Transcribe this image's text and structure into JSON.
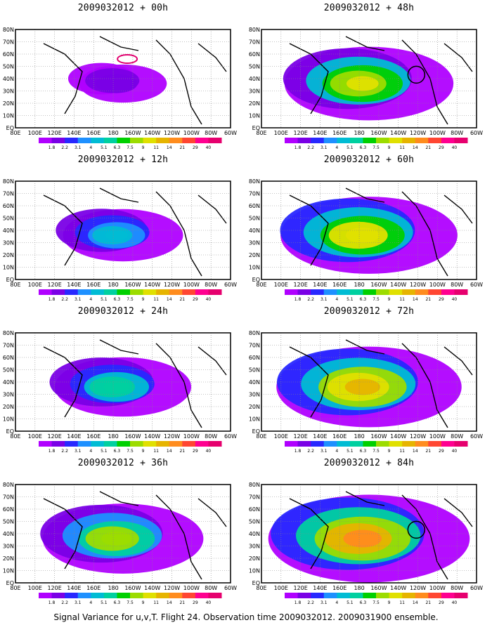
{
  "figure": {
    "caption": "Signal Variance for u,v,T. Flight 24. Observation time 2009032012. 2009031900 ensemble."
  },
  "map": {
    "lat_labels": [
      "80N",
      "70N",
      "60N",
      "50N",
      "40N",
      "30N",
      "20N",
      "10N",
      "EQ"
    ],
    "lon_labels": [
      "80E",
      "100E",
      "120E",
      "140E",
      "160E",
      "180",
      "160W",
      "140W",
      "120W",
      "100W",
      "80W",
      "60W"
    ],
    "projection": "lat-lon, 80E to 60W, EQ to 80N",
    "grid": "dotted"
  },
  "colorbar": {
    "labels": [
      "1.8",
      "2.2",
      "3.1",
      "4",
      "5.1",
      "6.3",
      "7.5",
      "9",
      "11",
      "14",
      "21",
      "29",
      "40"
    ],
    "colors": [
      "#b000ff",
      "#7a00e6",
      "#2828ff",
      "#1e90ff",
      "#00bcd4",
      "#00d0a0",
      "#00d000",
      "#9cdc00",
      "#e0e000",
      "#e6b400",
      "#ff8c1e",
      "#ff4632",
      "#ff0090",
      "#e6006e"
    ]
  },
  "panels": [
    {
      "title": "2009032012 + 00h",
      "level": 0.15,
      "marker": "box"
    },
    {
      "title": "2009032012 + 12h",
      "level": 0.35,
      "marker": "none"
    },
    {
      "title": "2009032012 + 24h",
      "level": 0.45,
      "marker": "none"
    },
    {
      "title": "2009032012 + 36h",
      "level": 0.6,
      "marker": "none"
    },
    {
      "title": "2009032012 + 48h",
      "level": 0.65,
      "marker": "circle"
    },
    {
      "title": "2009032012 + 60h",
      "level": 0.7,
      "marker": "none"
    },
    {
      "title": "2009032012 + 72h",
      "level": 0.75,
      "marker": "none"
    },
    {
      "title": "2009032012 + 84h",
      "level": 0.85,
      "marker": "circle"
    }
  ]
}
